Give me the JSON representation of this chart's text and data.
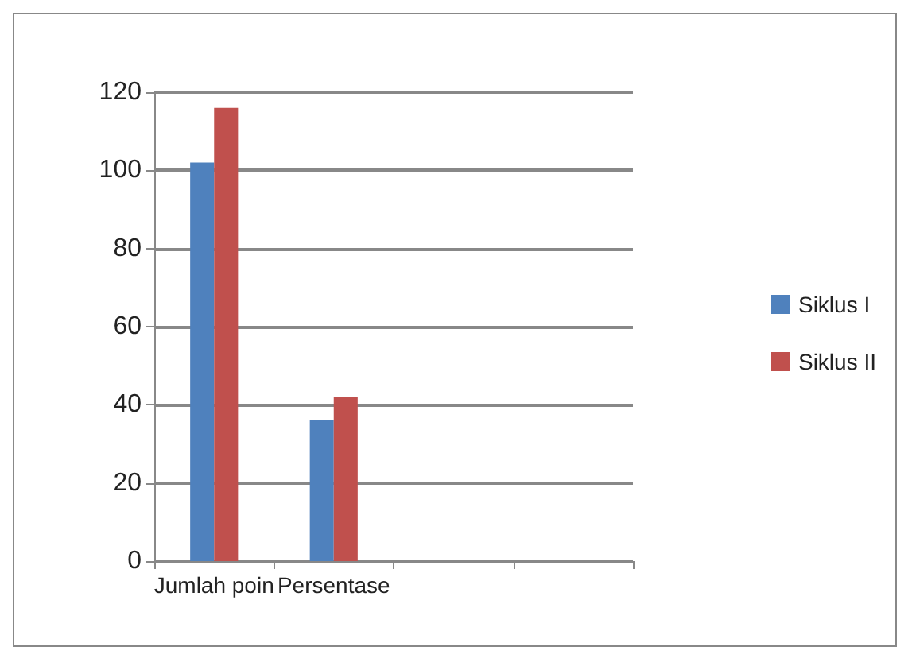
{
  "chart_data": {
    "type": "bar",
    "categories": [
      "Jumlah poin",
      "Persentase",
      null,
      null
    ],
    "series": [
      {
        "name": "Siklus I",
        "color": "#4f81bd",
        "values": [
          102,
          36,
          null,
          null
        ]
      },
      {
        "name": "Siklus II",
        "color": "#c0504d",
        "values": [
          116,
          42,
          null,
          null
        ]
      }
    ],
    "ylim": [
      0,
      120
    ],
    "yticks": [
      0,
      20,
      40,
      60,
      80,
      100,
      120
    ],
    "grid": "y",
    "legend": "right"
  }
}
